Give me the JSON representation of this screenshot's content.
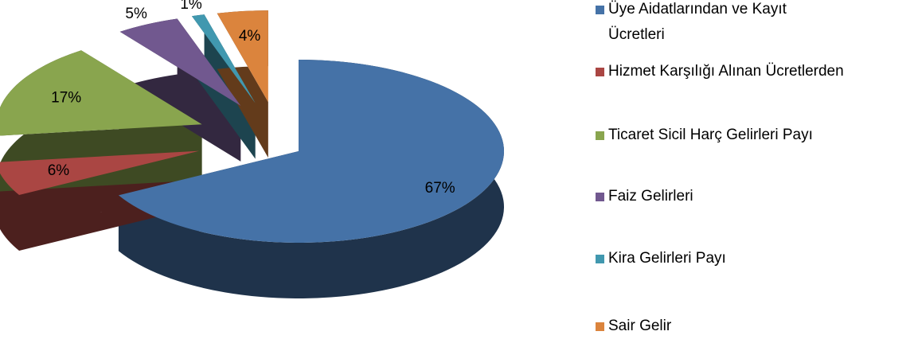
{
  "chart_data": {
    "type": "pie",
    "categories": [
      "Üye Aidatlarından ve Kayıt Ücretleri",
      "Hizmet Karşılığı Alınan Ücretlerden",
      "Ticaret Sicil Harç Gelirleri Payı",
      "Faiz Gelirleri",
      "Kira Gelirleri Payı",
      "Sair Gelir"
    ],
    "values": [
      67,
      6,
      17,
      5,
      1,
      4
    ],
    "value_labels": [
      "67%",
      "6%",
      "17%",
      "5%",
      "1%",
      "4%"
    ],
    "colors": [
      "#4572a7",
      "#aa4643",
      "#89a54e",
      "#71588f",
      "#4198af",
      "#db843d"
    ],
    "legend": "right"
  }
}
